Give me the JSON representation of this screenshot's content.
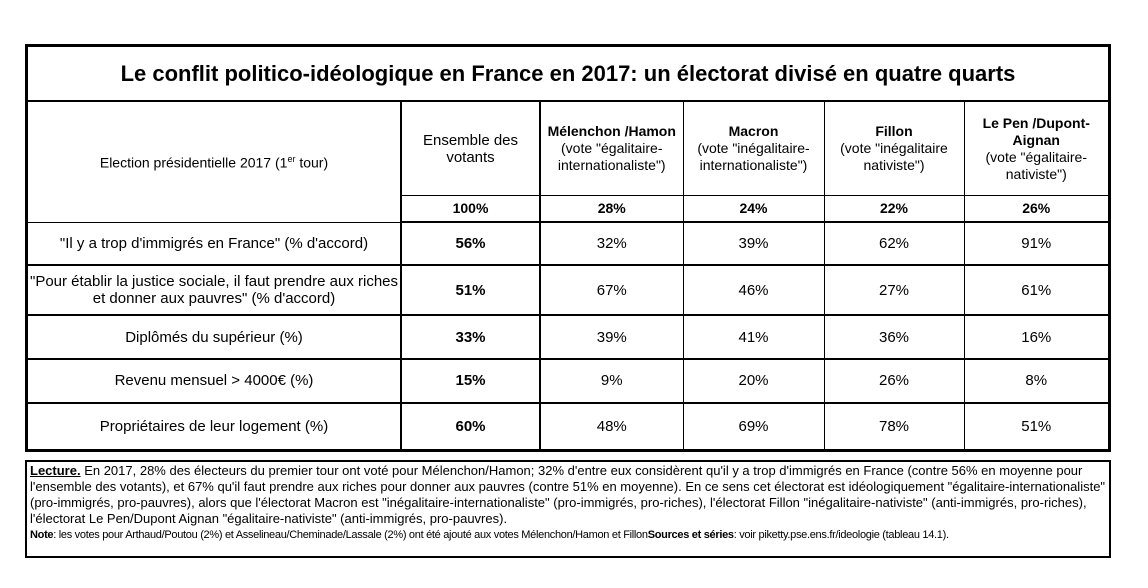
{
  "title": "Le conflit politico-idéologique en France en 2017: un électorat divisé en quatre quarts",
  "header": {
    "election_label": "Election présidentielle 2017 (1",
    "election_sup": "er",
    "election_suffix": " tour)",
    "columns": [
      {
        "name": "Ensemble des votants",
        "sub": ""
      },
      {
        "name": "Mélenchon /Hamon",
        "sub": "(vote \"égalitaire-internationaliste\")"
      },
      {
        "name": "Macron",
        "sub": "(vote \"inégalitaire-internationaliste\")"
      },
      {
        "name": "Fillon",
        "sub": "(vote \"inégalitaire nativiste\")"
      },
      {
        "name": "Le Pen /Dupont-Aignan",
        "sub": "(vote \"égalitaire-nativiste\")"
      }
    ]
  },
  "shares": [
    "100%",
    "28%",
    "24%",
    "22%",
    "26%"
  ],
  "rows": [
    {
      "label": "\"Il y a trop d'immigrés en France\" (% d'accord)",
      "values": [
        "56%",
        "32%",
        "39%",
        "62%",
        "91%"
      ]
    },
    {
      "label": "\"Pour établir la justice sociale, il faut prendre aux riches et donner aux pauvres\" (% d'accord)",
      "values": [
        "51%",
        "67%",
        "46%",
        "27%",
        "61%"
      ]
    },
    {
      "label": "Diplômés du supérieur (%)",
      "values": [
        "33%",
        "39%",
        "41%",
        "36%",
        "16%"
      ]
    },
    {
      "label": "Revenu mensuel > 4000€ (%)",
      "values": [
        "15%",
        "9%",
        "20%",
        "26%",
        "8%"
      ]
    },
    {
      "label": "Propriétaires de leur logement (%)",
      "values": [
        "60%",
        "48%",
        "69%",
        "78%",
        "51%"
      ]
    }
  ],
  "note": {
    "lecture_label": "Lecture.",
    "lecture_text": " En 2017, 28% des électeurs du premier tour ont voté pour Mélenchon/Hamon; 32% d'entre eux considèrent qu'il y a trop d'immigrés en France (contre 56% en moyenne pour l'ensemble des votants), et 67% qu'il faut prendre aux riches pour donner aux pauvres (contre 51% en moyenne). En ce sens cet électorat est idéologiquement \"égalitaire-internationaliste\" (pro-immigrés, pro-pauvres), alors que l'électorat Macron est \"inégalitaire-internationaliste\" (pro-immigrés, pro-riches), l'électorat Fillon \"inégalitaire-nativiste\" (anti-immigrés, pro-riches), l'électorat Le Pen/Dupont Aignan \"égalitaire-nativiste\" (anti-immigrés, pro-pauvres).",
    "note_label": "Note",
    "note_text": ": les votes pour Arthaud/Poutou (2%) et Asselineau/Cheminade/Lassale (2%) ont été ajouté aux votes Mélenchon/Hamon et Fillon",
    "sources_label": "Sources et séries",
    "sources_text": ": voir piketty.pse.ens.fr/ideologie (tableau 14.1)."
  }
}
